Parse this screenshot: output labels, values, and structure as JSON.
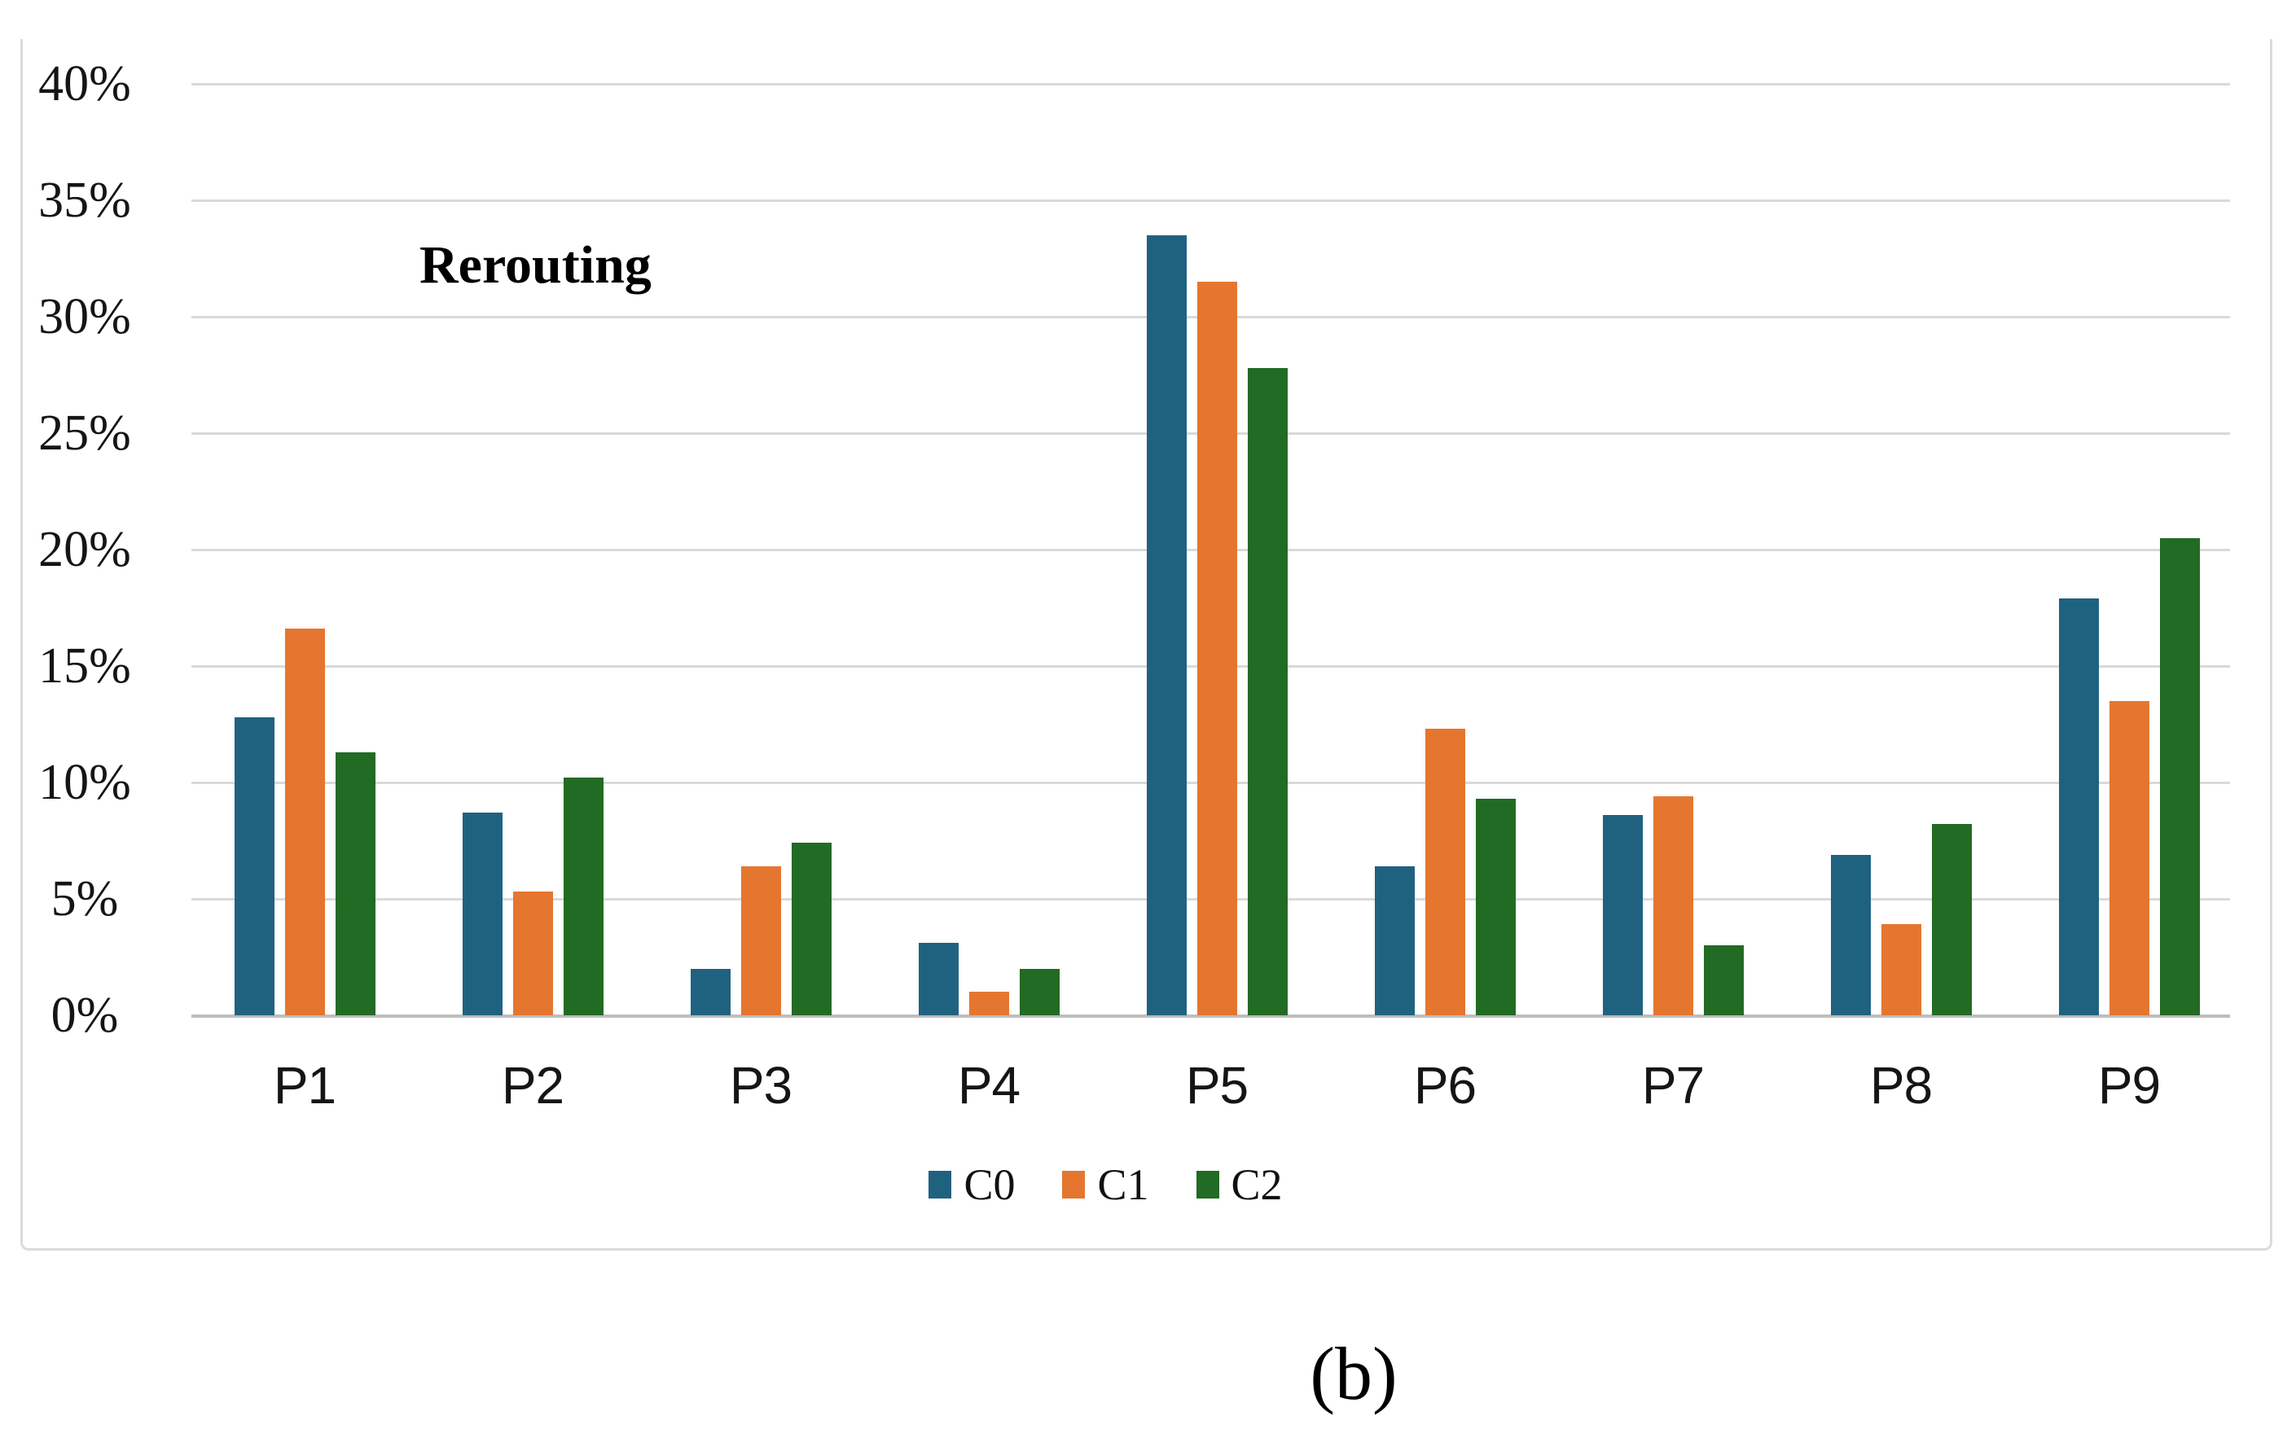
{
  "figure": {
    "caption": "(b)"
  },
  "chart_data": {
    "type": "bar",
    "title": "Rerouting",
    "xlabel": "",
    "ylabel": "",
    "categories": [
      "P1",
      "P2",
      "P3",
      "P4",
      "P5",
      "P6",
      "P7",
      "P8",
      "P9"
    ],
    "series": [
      {
        "name": "C0",
        "color": "#1f6280",
        "values": [
          12.8,
          8.7,
          2.0,
          3.1,
          33.5,
          6.4,
          8.6,
          6.9,
          17.9
        ]
      },
      {
        "name": "C1",
        "color": "#e5762f",
        "values": [
          16.6,
          5.3,
          6.4,
          1.0,
          31.5,
          12.3,
          9.4,
          3.9,
          13.5
        ]
      },
      {
        "name": "C2",
        "color": "#216b24",
        "values": [
          11.3,
          10.2,
          7.4,
          2.0,
          27.8,
          9.3,
          3.0,
          8.2,
          20.5
        ]
      }
    ],
    "ylim": [
      0,
      40
    ],
    "y_tick_step": 5,
    "y_ticks": [
      "40%",
      "35%",
      "30%",
      "25%",
      "20%",
      "15%",
      "10%",
      "5%",
      "0%"
    ],
    "grid": true,
    "legend_position": "bottom",
    "gridline_color": "#d9d9d9",
    "axis_line_color": "#bdbdbd"
  }
}
